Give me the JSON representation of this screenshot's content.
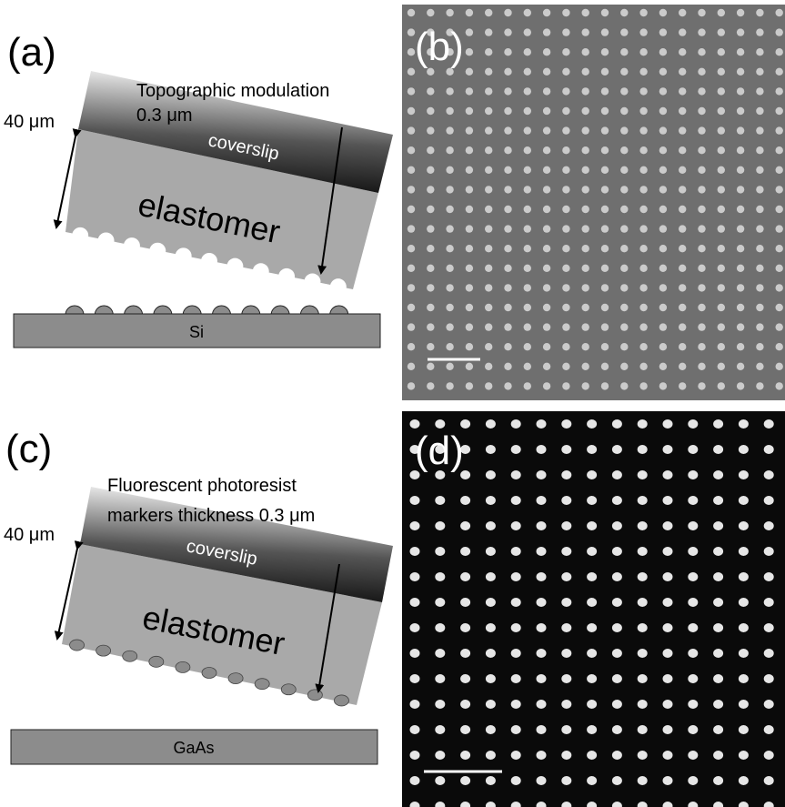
{
  "panels": [
    {
      "label": "(a)",
      "annotation": [
        "Topographic modulation",
        "0.3 μm"
      ],
      "thickness": "40 μm",
      "top_layer": "coverslip",
      "middle_layer": "elastomer",
      "substrate": "Si"
    },
    {
      "label": "(b)"
    },
    {
      "label": "(c)",
      "annotation": [
        "Fluorescent photoresist",
        "markers thickness 0.3 μm"
      ],
      "thickness": "40 μm",
      "top_layer": "coverslip",
      "middle_layer": "elastomer",
      "substrate": "GaAs"
    },
    {
      "label": "(d)"
    }
  ]
}
